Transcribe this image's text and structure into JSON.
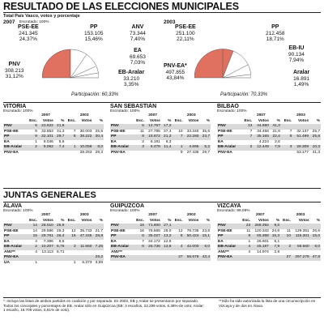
{
  "title": "RESULTADO DE LAS ELECCIONES MUNICIPALES",
  "subtitle": "Total País Vasco, votos y porcentaje",
  "left_year": "2007",
  "left_escrut": "Escrutado: 100%",
  "right_year": "2003",
  "pie2007": {
    "participation": "Participación: 60,33%",
    "labels": [
      {
        "name": "PSE-EE",
        "votes": "241.345",
        "pct": "24,37%"
      },
      {
        "name": "PP",
        "votes": "153.105",
        "pct": "15,46%"
      },
      {
        "name": "ANV",
        "votes": "73.344",
        "pct": "7,40%"
      },
      {
        "name": "EA",
        "votes": "69.653",
        "pct": "7,03%"
      },
      {
        "name": "EB-Aralar",
        "votes": "33.210",
        "pct": "3,35%"
      },
      {
        "name": "PNV",
        "votes": "308.213",
        "pct": "31,12%"
      }
    ]
  },
  "pie2003": {
    "participation": "Participación: 70,33%",
    "labels": [
      {
        "name": "PSE-EE",
        "votes": "251.100",
        "pct": "22,11%"
      },
      {
        "name": "PP",
        "votes": "212.458",
        "pct": "18,71%"
      },
      {
        "name": "EB-IU",
        "votes": "90.134",
        "pct": "7,94%"
      },
      {
        "name": "Aralar",
        "votes": "16.891",
        "pct": "1,49%"
      },
      {
        "name": "PNV-EA*",
        "votes": "497.855",
        "pct": "43,84%"
      }
    ]
  },
  "cities": [
    {
      "name": "VITORIA",
      "escrut": "Escrutado: 100%",
      "rows": [
        [
          "PNV",
          "6",
          "23.622",
          "21,8",
          "",
          "",
          ""
        ],
        [
          "PSE-EE",
          "9",
          "33.853",
          "31,3",
          "7",
          "30.003",
          "25,5"
        ],
        [
          "PP",
          "9",
          "32.101",
          "29,7",
          "8",
          "38.222",
          "30,4"
        ],
        [
          "EA",
          "1",
          "6.046",
          "5,6",
          "",
          "",
          ""
        ],
        [
          "EB-Aralar",
          "2",
          "8.062",
          "7,4",
          "1",
          "10.058",
          "8,0"
        ],
        [
          "PNV-EA",
          "",
          "",
          "",
          "",
          "28.253",
          "29,3"
        ]
      ]
    },
    {
      "name": "SAN SEBASTIÁN",
      "escrut": "Escrutado: 100%",
      "rows": [
        [
          "PNV",
          "5",
          "12.767",
          "17,2",
          "",
          "",
          ""
        ],
        [
          "PSE-EE",
          "11",
          "27.785",
          "37,4",
          "10",
          "33.340",
          "35,6"
        ],
        [
          "PP",
          "8",
          "15.872",
          "21,3",
          "7",
          "22.280",
          "23,7"
        ],
        [
          "EA",
          "2",
          "6.191",
          "8,3",
          "",
          "",
          ""
        ],
        [
          "EB-Aralar",
          "3",
          "8.478",
          "11,4",
          "1",
          "4.695",
          "5,2"
        ],
        [
          "PNV-EA",
          "",
          "",
          "",
          "9",
          "27.435",
          "29,7"
        ]
      ]
    },
    {
      "name": "BILBAO",
      "escrut": "Escrutado: 100%",
      "rows": [
        [
          "PNV",
          "13",
          "44.690",
          "41,3",
          "",
          "",
          ""
        ],
        [
          "PSE-EE",
          "7",
          "34.456",
          "21,9",
          "7",
          "32.137",
          "25,7"
        ],
        [
          "PP",
          "7",
          "35.165",
          "22,4",
          "8",
          "51.499",
          "25,8"
        ],
        [
          "EA",
          "",
          "4.224",
          "2,6",
          "",
          "",
          ""
        ],
        [
          "EB-Aralar",
          "2",
          "12.449",
          "7,9",
          "3",
          "28.308",
          "10,3"
        ],
        [
          "PNV-EA",
          "",
          "",
          "",
          "",
          "53.177",
          "41,3"
        ]
      ]
    }
  ],
  "juntas_title": "JUNTAS GENERALES",
  "provinces": [
    {
      "name": "ÁLAVA",
      "escrut": "Escrutado: 100%",
      "rows": [
        [
          "PNV",
          "14",
          "28.010",
          "25,9",
          "",
          "",
          ""
        ],
        [
          "PSE-EE",
          "14",
          "29.596",
          "26,3",
          "12",
          "35.733",
          "21,7"
        ],
        [
          "PP",
          "15",
          "29.761",
          "26,4",
          "16",
          "47.345",
          "28,8"
        ],
        [
          "EA",
          "4",
          "7.396",
          "6,6",
          "",
          "",
          ""
        ],
        [
          "EB-Aralar",
          "2",
          "10.207",
          "6,76",
          "3",
          "11.660",
          "7,25"
        ],
        [
          "ANV**",
          "4",
          "13.113",
          "6,71",
          "",
          "",
          ""
        ],
        [
          "PNV-EA",
          "",
          "",
          "",
          "",
          "",
          "29,2"
        ],
        [
          "UA",
          "1",
          "",
          "",
          "1",
          "6.373",
          "3,69"
        ]
      ]
    },
    {
      "name": "GUIPÚZCOA",
      "escrut": "Escrutado: 100%",
      "rows": [
        [
          "PNV",
          "16",
          "71.800",
          "27,1",
          "",
          "",
          ""
        ],
        [
          "PSE-EE",
          "16",
          "76.665",
          "29,0",
          "12",
          "78.735",
          "23,8"
        ],
        [
          "PP",
          "6",
          "35.027",
          "13,2",
          "8",
          "50.424",
          "15,1"
        ],
        [
          "EA",
          "7",
          "34.172",
          "12,9",
          "",
          "",
          ""
        ],
        [
          "EB-Aralar",
          "6",
          "26.736",
          "13,8",
          "4",
          "42.000",
          "9,0"
        ],
        [
          "ANV**",
          "",
          "",
          "",
          "",
          "",
          ""
        ],
        [
          "PNV-EA",
          "",
          "",
          "",
          "27",
          "56.676",
          "43,4"
        ]
      ]
    },
    {
      "name": "VIZCAYA",
      "escrut": "Escrutado: 99,09%",
      "rows": [
        [
          "PNV",
          "23",
          "268.392",
          "9,0",
          "",
          "",
          ""
        ],
        [
          "PSE-EE",
          "11",
          "120.342",
          "24,8",
          "11",
          "129.351",
          "26,6"
        ],
        [
          "PP",
          "8",
          "65.368",
          "15,3",
          "10",
          "115.301",
          "15,0"
        ],
        [
          "EA",
          "1",
          "26.601",
          "5,1",
          "",
          "",
          ""
        ],
        [
          "EB-Aralar",
          "4",
          "45.187",
          "7,9",
          "3",
          "56.660",
          "9,0"
        ],
        [
          "ANV**",
          "4",
          "14.974",
          "2,8",
          "",
          "",
          ""
        ],
        [
          "PNV-EA",
          "",
          "",
          "",
          "27",
          "297.278",
          "47,8"
        ]
      ]
    }
  ],
  "col_y1": "2007",
  "col_y2": "2003",
  "col_heads": [
    "Esc.",
    "Votos",
    "%",
    "Esc.",
    "Votos",
    "%"
  ],
  "foot_left": "*: Incluye las listas de ambos partidos en coalición y por separado. En 2003, EB y Aralar se presentaron por separado. Todos los concejales y porcentajes de EB. Aralar sólo en Guipúzcoa (EB: 3 escaños, 23.299 votos, 6,38%-de voto; Aralar: 1 escaño, 16.709 votos, 5,61% de voto).",
  "foot_right": "**Sólo ha sido autorizada la lista de una circunscripción en Vizcaya y de dos en Álava."
}
